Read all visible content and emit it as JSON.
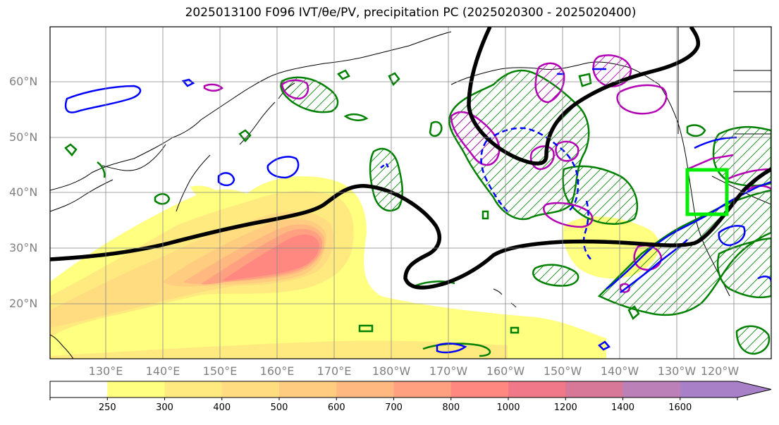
{
  "title": "2025013100 F096 IVT/θe/PV, precipitation PC (2025020300 - 2025020400)",
  "map": {
    "lat_labels": [
      "60°N",
      "50°N",
      "40°N",
      "30°N",
      "20°N"
    ],
    "lon_labels": [
      "130°E",
      "140°E",
      "150°E",
      "160°E",
      "170°E",
      "180°W",
      "170°W",
      "160°W",
      "150°W",
      "140°W",
      "130°W",
      "120°W"
    ],
    "colors": {
      "pv_contour": "#000000",
      "green_contour": "#008000",
      "blue_contour": "#0000ff",
      "magenta_contour": "#b400b4",
      "target_box": "#00ee00",
      "coastline": "#000000"
    }
  },
  "colorbar": {
    "tick_labels": [
      "250",
      "300",
      "400",
      "500",
      "600",
      "700",
      "800",
      "1000",
      "1200",
      "1400",
      "1600"
    ],
    "levels": [
      0,
      250,
      300,
      400,
      500,
      600,
      700,
      800,
      1000,
      1200,
      1400,
      1600
    ],
    "colors": [
      "#ffffff",
      "#ffff80",
      "#ffea80",
      "#ffdc80",
      "#ffcc80",
      "#ffb880",
      "#ffa080",
      "#ff8880",
      "#f07888",
      "#d87898",
      "#bc80b8",
      "#a880c8"
    ],
    "extend": "max"
  }
}
